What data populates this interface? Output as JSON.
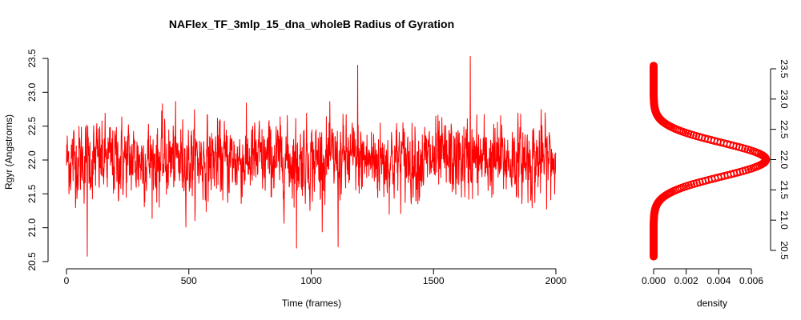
{
  "chart_data": [
    {
      "type": "line",
      "title": "NAFlex_TF_3mlp_15_dna_wholeB Radius of Gyration",
      "xlabel": "Time (frames)",
      "ylabel": "Rgyr (Angstroms)",
      "xlim": [
        0,
        2000
      ],
      "ylim": [
        20.5,
        23.5
      ],
      "x_ticks": [
        0,
        500,
        1000,
        1500,
        2000
      ],
      "y_ticks": [
        20.5,
        21.0,
        21.5,
        22.0,
        22.5,
        23.0,
        23.5
      ],
      "x_tick_labels": [
        "0",
        "500",
        "1000",
        "1500",
        "2000"
      ],
      "y_tick_labels": [
        "20.5",
        "21.0",
        "21.5",
        "22.0",
        "22.5",
        "23.0",
        "23.5"
      ],
      "grid": false,
      "color": "#ff0000",
      "series_summary": {
        "n_frames": 2000,
        "mean": 22.0,
        "sd": 0.28,
        "min": 20.58,
        "max": 23.53
      },
      "notable_points": [
        {
          "x": 85,
          "y": 20.58
        },
        {
          "x": 940,
          "y": 20.7
        },
        {
          "x": 1110,
          "y": 20.72
        },
        {
          "x": 1190,
          "y": 23.4
        },
        {
          "x": 1650,
          "y": 23.53
        }
      ]
    },
    {
      "type": "scatter",
      "xlabel": "density",
      "ylim": [
        20.5,
        23.5
      ],
      "xlim": [
        0,
        0.0073
      ],
      "x_ticks": [
        0.0,
        0.002,
        0.004,
        0.006
      ],
      "x_tick_labels": [
        "0.000",
        "0.002",
        "0.004",
        "0.006"
      ],
      "y_ticks": [
        20.5,
        21.0,
        21.5,
        22.0,
        22.5,
        23.0,
        23.5
      ],
      "y_tick_labels": [
        "20.5",
        "21.0",
        "21.5",
        "22.0",
        "22.5",
        "23.0",
        "23.5"
      ],
      "y_axis_side": "right",
      "grid": false,
      "color": "#ff0000",
      "density_peak": {
        "y": 22.0,
        "density": 0.0069
      },
      "density_range_y": [
        20.4,
        23.55
      ],
      "density_sd": 0.28
    }
  ]
}
